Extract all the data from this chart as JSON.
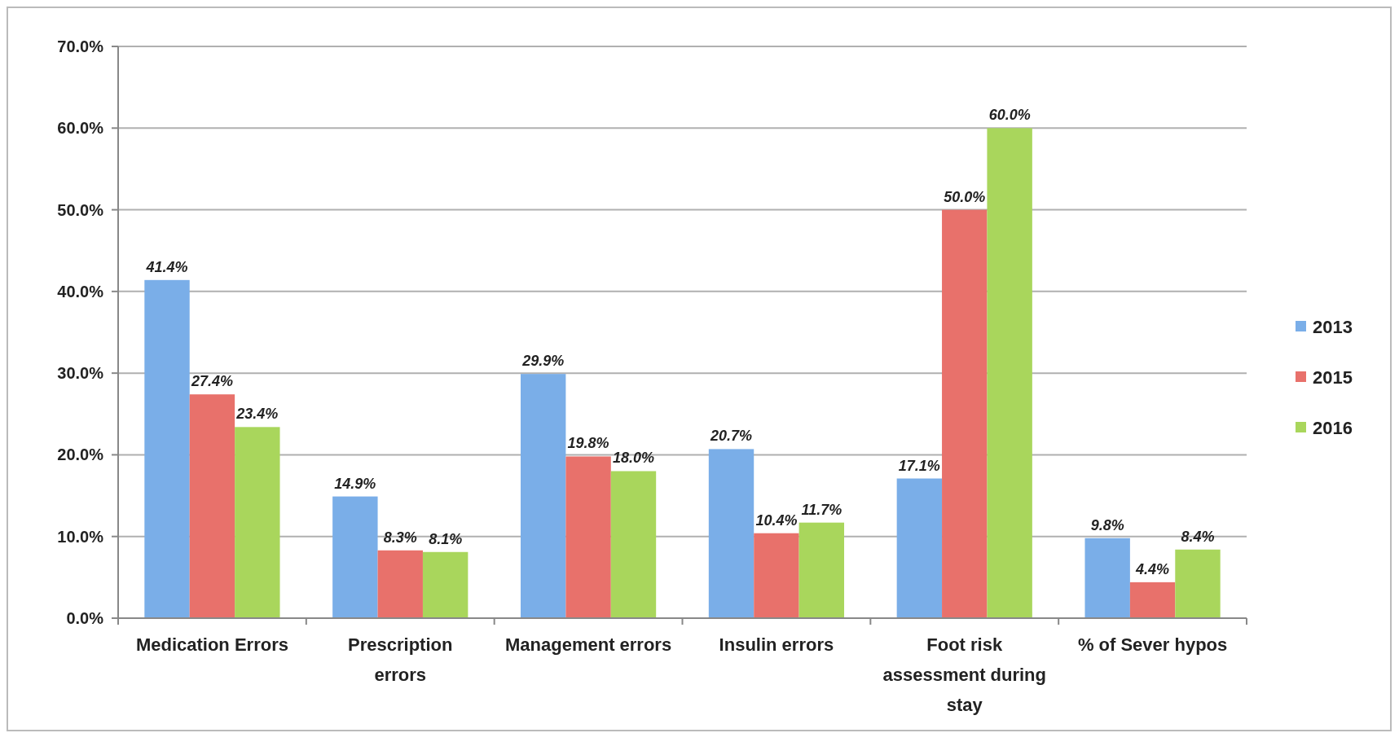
{
  "chart_data": {
    "type": "bar",
    "categories": [
      "Medication Errors",
      "Prescription errors",
      "Management errors",
      "Insulin errors",
      "Foot risk assessment during stay",
      "% of Sever hypos"
    ],
    "series": [
      {
        "name": "2013",
        "color": "#7aaee8",
        "values": [
          41.4,
          14.9,
          29.9,
          20.7,
          17.1,
          9.8
        ],
        "value_labels": [
          "41.4%",
          "14.9%",
          "29.9%",
          "20.7%",
          "17.1%",
          "9.8%"
        ]
      },
      {
        "name": "2015",
        "color": "#e8716b",
        "values": [
          27.4,
          8.3,
          19.8,
          10.4,
          50.0,
          4.4
        ],
        "value_labels": [
          "27.4%",
          "8.3%",
          "19.8%",
          "10.4%",
          "50.0%",
          "4.4%"
        ]
      },
      {
        "name": "2016",
        "color": "#a9d65c",
        "values": [
          23.4,
          8.1,
          18.0,
          11.7,
          60.0,
          8.4
        ],
        "value_labels": [
          "23.4%",
          "8.1%",
          "18.0%",
          "11.7%",
          "60.0%",
          "8.4%"
        ]
      }
    ],
    "ylim": [
      0,
      70
    ],
    "yticks": [
      {
        "value": 0,
        "label": "0.0%"
      },
      {
        "value": 10,
        "label": "10.0%"
      },
      {
        "value": 20,
        "label": "20.0%"
      },
      {
        "value": 30,
        "label": "30.0%"
      },
      {
        "value": 40,
        "label": "40.0%"
      },
      {
        "value": 50,
        "label": "50.0%"
      },
      {
        "value": 60,
        "label": "60.0%"
      },
      {
        "value": 70,
        "label": "70.0%"
      }
    ],
    "grid": "y",
    "legend": "right"
  }
}
